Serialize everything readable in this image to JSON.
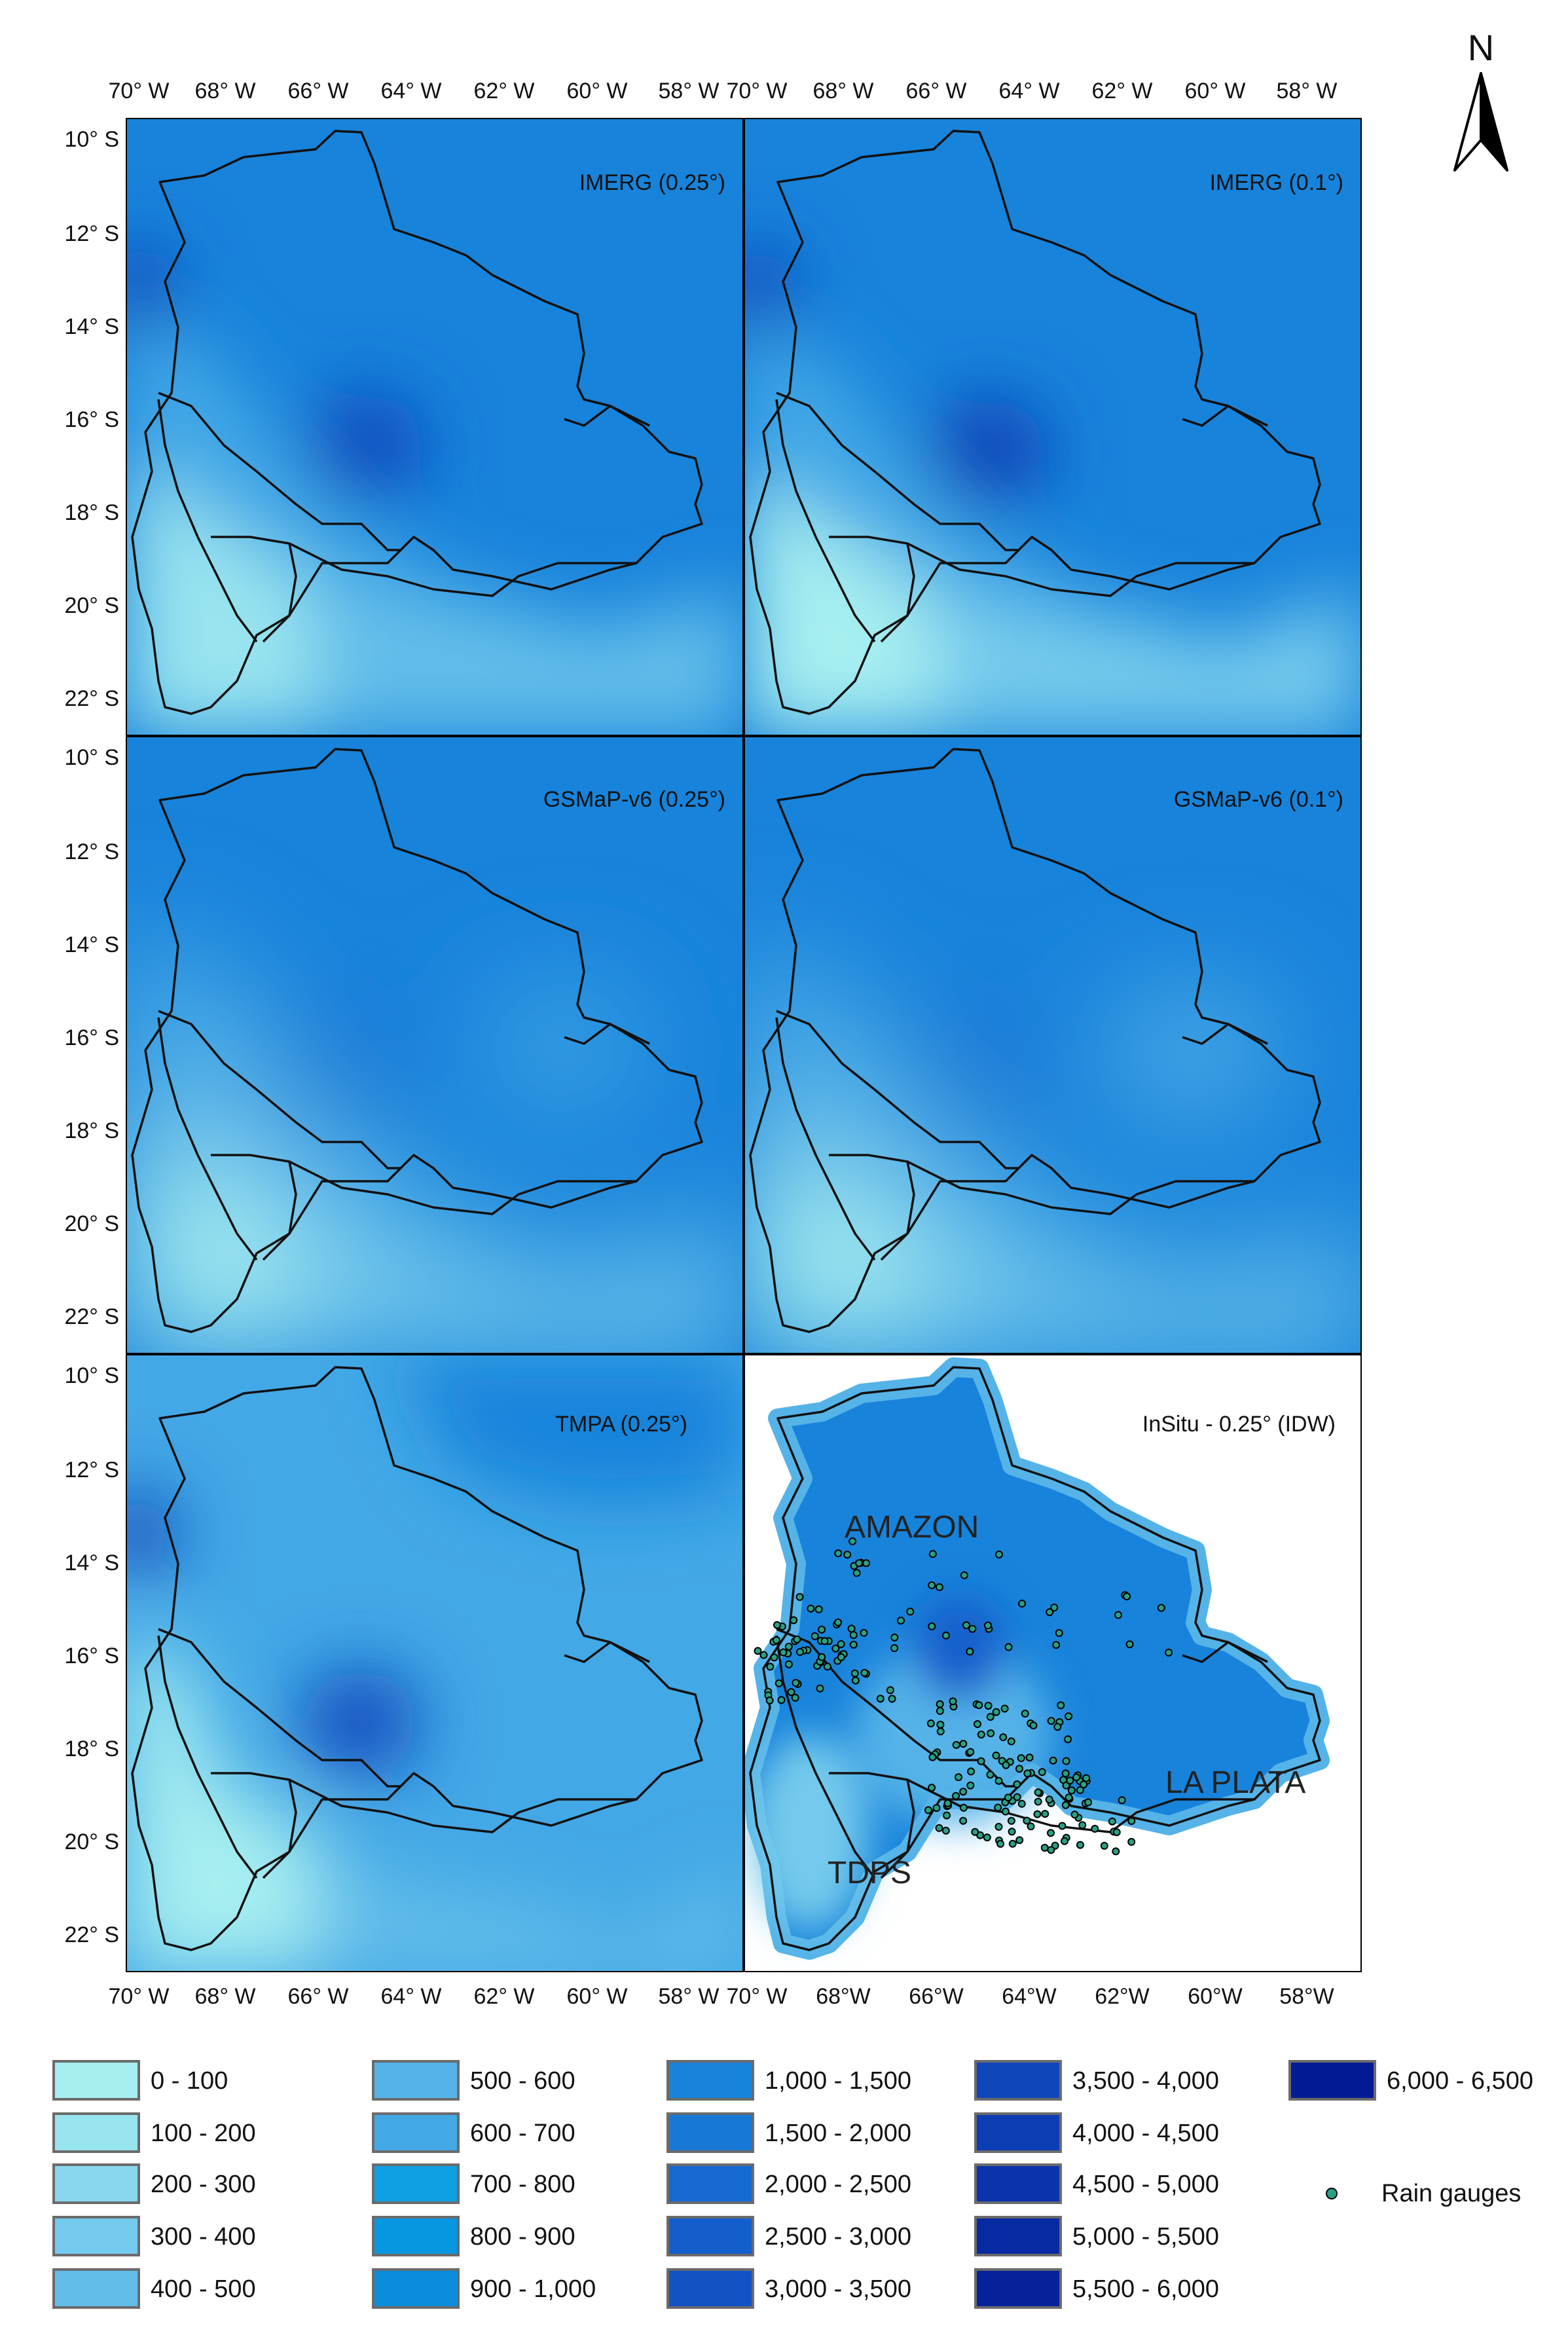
{
  "panels": [
    {
      "id": "imerg-025",
      "label": "IMERG (0.25°)",
      "type": "satellite"
    },
    {
      "id": "imerg-01",
      "label": "IMERG (0.1°)",
      "type": "satellite"
    },
    {
      "id": "gsmap-025",
      "label": "GSMaP-v6 (0.25°)",
      "type": "satellite"
    },
    {
      "id": "gsmap-01",
      "label": "GSMaP-v6 (0.1°)",
      "type": "satellite"
    },
    {
      "id": "tmpa-025",
      "label": "TMPA (0.25°)",
      "type": "satellite"
    },
    {
      "id": "insitu-025",
      "label": "InSitu - 0.25° (IDW)",
      "type": "insitu"
    }
  ],
  "axes": {
    "top_left_lon": [
      "70° W",
      "68° W",
      "66° W",
      "64° W",
      "62° W",
      "60° W",
      "58° W"
    ],
    "top_right_lon": [
      "70° W",
      "68° W",
      "66° W",
      "64° W",
      "62° W",
      "60° W",
      "58° W"
    ],
    "bottom_left_lon": [
      "70° W",
      "68° W",
      "66° W",
      "64° W",
      "62° W",
      "60° W",
      "58° W"
    ],
    "bottom_right_lon": [
      "70° W",
      "68°W",
      "66°W",
      "64°W",
      "62°W",
      "60°W",
      "58°W"
    ],
    "lat": [
      "10° S",
      "12° S",
      "14° S",
      "16° S",
      "18° S",
      "20° S",
      "22° S"
    ]
  },
  "north_arrow": {
    "label": "N"
  },
  "basins": [
    "AMAZON",
    "LA PLATA",
    "TDPS"
  ],
  "legend": {
    "classes": [
      {
        "label": "0 - 100",
        "color": "#a6eef0"
      },
      {
        "label": "100 - 200",
        "color": "#98e4ef"
      },
      {
        "label": "200 - 300",
        "color": "#88d7ee"
      },
      {
        "label": "300 - 400",
        "color": "#74caec"
      },
      {
        "label": "400 - 500",
        "color": "#62bde9"
      },
      {
        "label": "500 - 600",
        "color": "#55b3e8"
      },
      {
        "label": "600 - 700",
        "color": "#43a8e6"
      },
      {
        "label": "700 - 800",
        "color": "#0f9fe3"
      },
      {
        "label": "800 - 900",
        "color": "#0796e0"
      },
      {
        "label": "900 - 1,000",
        "color": "#0a8ddc"
      },
      {
        "label": "1,000 - 1,500",
        "color": "#1883db"
      },
      {
        "label": "1,500 - 2,000",
        "color": "#1778d6"
      },
      {
        "label": "2,000 - 2,500",
        "color": "#166ad2"
      },
      {
        "label": "2,500 - 3,000",
        "color": "#145ecc"
      },
      {
        "label": "3,000 - 3,500",
        "color": "#1252c4"
      },
      {
        "label": "3,500 - 4,000",
        "color": "#1046bc"
      },
      {
        "label": "4,000 - 4,500",
        "color": "#0d3db4"
      },
      {
        "label": "4,500 - 5,000",
        "color": "#0a33ac"
      },
      {
        "label": "5,000 - 5,500",
        "color": "#072aa3"
      },
      {
        "label": "5,500 - 6,000",
        "color": "#05229a"
      },
      {
        "label": "6,000 - 6,500",
        "color": "#031b92"
      }
    ],
    "rain_gauges_label": "Rain gauges",
    "rain_gauge_color": "#2aa084"
  }
}
